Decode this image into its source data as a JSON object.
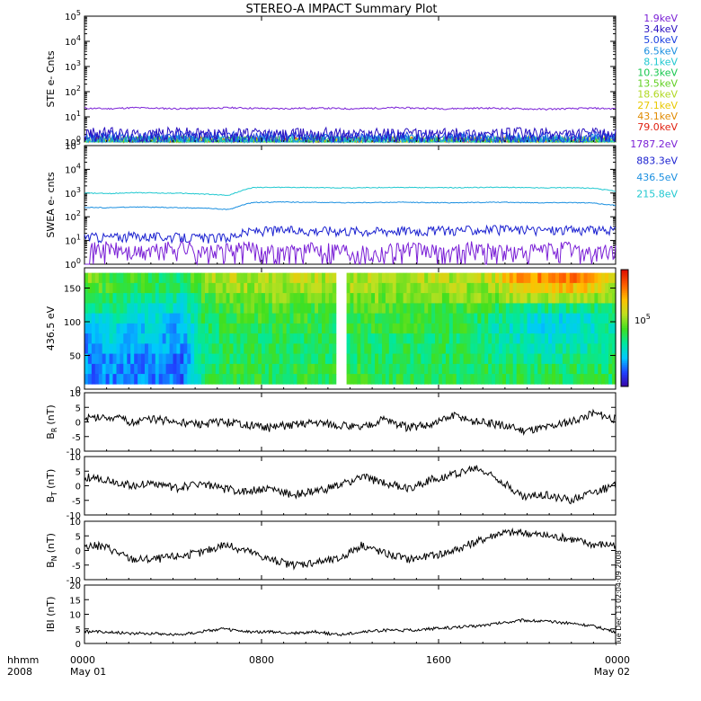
{
  "chart_data": [
    {
      "type": "line",
      "title": "STEREO-A IMPACT Summary Plot",
      "ylabel": "STE e- Cnts",
      "yscale": "log",
      "ylim_exp": [
        0,
        5
      ],
      "tick_mantissa": "10",
      "tick_exponents": [
        "0",
        "1",
        "2",
        "3",
        "4",
        "5"
      ],
      "series": [
        {
          "name": "1.9keV",
          "color": "#7a1fd6",
          "values": [
            22,
            21,
            23,
            22,
            21,
            22,
            23,
            22,
            21,
            22,
            22,
            21,
            22,
            23,
            22,
            21,
            22,
            22,
            21,
            20,
            21,
            22,
            21
          ]
        },
        {
          "name": "3.4keV",
          "color": "#2a10c0",
          "values": [
            2.2,
            2.5,
            2.0,
            2.3,
            2.6,
            2.1,
            2.4,
            2.2,
            2.0,
            2.3,
            2.5,
            2.1,
            2.2,
            2.4,
            2.0,
            2.3,
            2.2,
            2.1,
            2.4,
            2.2,
            2.0,
            2.3,
            2.1
          ]
        },
        {
          "name": "5.0keV",
          "color": "#1a3fe0",
          "values": [
            1.6,
            1.8,
            1.5,
            1.7,
            1.9,
            1.6,
            1.7,
            1.5,
            1.8,
            1.6,
            1.7,
            1.5,
            1.6,
            1.8,
            1.5,
            1.7,
            1.6,
            1.5,
            1.7,
            1.6,
            1.5,
            1.7,
            1.6
          ]
        },
        {
          "name": "6.5keV",
          "color": "#1a8fe0",
          "values": [
            1.3,
            1.4,
            1.2,
            1.3,
            1.5,
            1.2,
            1.3,
            1.2,
            1.4,
            1.3,
            1.3,
            1.2,
            1.3,
            1.4,
            1.2,
            1.3,
            1.3,
            1.2,
            1.3,
            1.3,
            1.2,
            1.3,
            1.3
          ]
        },
        {
          "name": "8.1keV",
          "color": "#20c8d0",
          "values": [
            1.1,
            1.2,
            1.1,
            1.2,
            1.3,
            1.1,
            1.2,
            1.1,
            1.2,
            1.1,
            1.2,
            1.1,
            1.1,
            1.2,
            1.1,
            1.2,
            1.1,
            1.1,
            1.2,
            1.1,
            1.1,
            1.2,
            1.1
          ]
        },
        {
          "name": "10.3keV",
          "color": "#18c850",
          "values": [
            1.0,
            1.1,
            1.0,
            1.1,
            1.2,
            1.0,
            1.1,
            1.0,
            1.1,
            1.0,
            1.1,
            1.0,
            1.0,
            1.1,
            1.0,
            1.1,
            1.0,
            1.0,
            1.1,
            1.0,
            1.0,
            1.1,
            1.0
          ]
        },
        {
          "name": "13.5keV",
          "color": "#60d020",
          "values": [
            1.0,
            1.0,
            1.0,
            1.1,
            1.0,
            1.0,
            1.1,
            1.0,
            1.0,
            1.0,
            1.1,
            1.0,
            1.0,
            1.0,
            1.0,
            1.1,
            1.0,
            1.0,
            1.0,
            1.0,
            1.0,
            1.1,
            1.0
          ]
        },
        {
          "name": "18.6keV",
          "color": "#b0d820",
          "values": [
            1.0,
            1.0,
            1.0,
            1.0,
            1.0,
            1.0,
            1.0,
            1.0,
            1.0,
            1.0,
            1.0,
            1.0,
            1.0,
            1.0,
            1.0,
            1.0,
            1.0,
            1.0,
            1.0,
            1.0,
            1.0,
            1.0,
            1.0
          ]
        },
        {
          "name": "27.1keV",
          "color": "#e8c800",
          "values": [
            1.0,
            1.0,
            1.0,
            1.0,
            1.0,
            1.0,
            1.0,
            1.0,
            1.0,
            1.0,
            1.0,
            1.0,
            1.0,
            1.0,
            1.0,
            1.0,
            1.0,
            1.0,
            1.0,
            1.0,
            1.0,
            1.0,
            1.0
          ]
        },
        {
          "name": "43.1keV",
          "color": "#e08a00",
          "values": [
            1.0,
            1.0,
            1.0,
            1.0,
            1.0,
            1.0,
            1.0,
            1.0,
            1.0,
            1.0,
            1.0,
            1.0,
            1.0,
            1.0,
            1.0,
            1.0,
            1.0,
            1.0,
            1.0,
            1.0,
            1.0,
            1.0,
            1.0
          ]
        },
        {
          "name": "79.0keV",
          "color": "#e02010",
          "values": [
            1.0,
            1.0,
            1.0,
            1.0,
            1.0,
            1.0,
            1.0,
            1.0,
            1.0,
            1.0,
            1.0,
            1.0,
            1.0,
            1.0,
            1.0,
            1.0,
            1.0,
            1.0,
            1.0,
            1.0,
            1.0,
            1.0,
            1.0
          ]
        }
      ]
    },
    {
      "type": "line",
      "ylabel": "SWEA e- cnts",
      "yscale": "log",
      "ylim_exp": [
        0,
        5
      ],
      "tick_mantissa": "10",
      "tick_exponents": [
        "0",
        "1",
        "2",
        "3",
        "4",
        "5"
      ],
      "series": [
        {
          "name": "1787.2eV",
          "color": "#7a1fd6",
          "values": [
            4,
            5,
            3,
            4,
            6,
            3,
            4,
            5,
            3,
            4,
            5,
            4,
            3,
            5,
            4,
            3,
            5,
            4,
            3,
            4,
            5,
            3,
            4
          ]
        },
        {
          "name": "883.3eV",
          "color": "#1a20d0",
          "values": [
            15,
            14,
            16,
            15,
            14,
            13,
            14,
            26,
            28,
            27,
            28,
            27,
            26,
            28,
            27,
            28,
            29,
            30,
            29,
            28,
            29,
            28,
            26
          ]
        },
        {
          "name": "436.5eV",
          "color": "#1a8fe0",
          "values": [
            250,
            240,
            260,
            250,
            240,
            230,
            200,
            400,
            420,
            410,
            400,
            390,
            400,
            410,
            400,
            390,
            400,
            410,
            400,
            390,
            400,
            380,
            300
          ]
        },
        {
          "name": "215.8eV",
          "color": "#20c8d0",
          "values": [
            1000,
            950,
            1050,
            1000,
            980,
            900,
            800,
            1700,
            1750,
            1700,
            1680,
            1650,
            1700,
            1720,
            1700,
            1680,
            1700,
            1750,
            1700,
            1650,
            1700,
            1600,
            1200
          ]
        }
      ]
    },
    {
      "type": "heatmap",
      "ylabel": "436.5 eV",
      "ylim": [
        0,
        180
      ],
      "yticks": [
        0,
        50,
        100,
        150
      ],
      "colorbar_label_mantissa": "10",
      "colorbar_label_exponent": "5",
      "colorscale": [
        "#3a00a0",
        "#2040ff",
        "#00c8ff",
        "#00e8a0",
        "#40e020",
        "#c0e020",
        "#ffc000",
        "#ff6000",
        "#e01000"
      ],
      "rows_pitch_deg": [
        165,
        150,
        135,
        120,
        105,
        90,
        75,
        60,
        45,
        30,
        15
      ],
      "column_levels": [
        [
          0.55,
          0.5,
          0.5,
          0.45,
          0.4,
          0.6,
          0.65,
          0.6,
          0.6,
          0.65,
          0.6,
          0.62,
          0.6,
          0.6,
          0.6,
          0.62,
          0.6,
          0.65,
          0.8,
          0.82,
          0.85,
          0.8,
          0.7
        ],
        [
          0.5,
          0.5,
          0.45,
          0.45,
          0.4,
          0.55,
          0.6,
          0.58,
          0.58,
          0.6,
          0.58,
          0.6,
          0.58,
          0.58,
          0.58,
          0.6,
          0.58,
          0.6,
          0.7,
          0.72,
          0.75,
          0.7,
          0.6
        ],
        [
          0.45,
          0.45,
          0.4,
          0.4,
          0.35,
          0.5,
          0.55,
          0.55,
          0.55,
          0.55,
          0.55,
          0.55,
          0.55,
          0.55,
          0.55,
          0.55,
          0.55,
          0.55,
          0.6,
          0.6,
          0.62,
          0.6,
          0.55
        ],
        [
          0.4,
          0.4,
          0.35,
          0.35,
          0.3,
          0.45,
          0.5,
          0.5,
          0.5,
          0.5,
          0.5,
          0.5,
          0.5,
          0.5,
          0.5,
          0.5,
          0.5,
          0.45,
          0.4,
          0.4,
          0.4,
          0.4,
          0.45
        ],
        [
          0.3,
          0.35,
          0.3,
          0.3,
          0.25,
          0.45,
          0.48,
          0.48,
          0.48,
          0.48,
          0.48,
          0.48,
          0.48,
          0.48,
          0.48,
          0.48,
          0.45,
          0.4,
          0.35,
          0.3,
          0.3,
          0.32,
          0.4
        ],
        [
          0.25,
          0.3,
          0.28,
          0.28,
          0.22,
          0.42,
          0.46,
          0.46,
          0.46,
          0.46,
          0.46,
          0.46,
          0.46,
          0.46,
          0.46,
          0.46,
          0.44,
          0.38,
          0.32,
          0.3,
          0.3,
          0.32,
          0.38
        ],
        [
          0.22,
          0.28,
          0.25,
          0.25,
          0.2,
          0.4,
          0.44,
          0.44,
          0.44,
          0.44,
          0.44,
          0.44,
          0.44,
          0.44,
          0.44,
          0.44,
          0.42,
          0.38,
          0.34,
          0.32,
          0.32,
          0.34,
          0.38
        ],
        [
          0.2,
          0.25,
          0.22,
          0.22,
          0.18,
          0.4,
          0.44,
          0.44,
          0.44,
          0.44,
          0.44,
          0.44,
          0.44,
          0.44,
          0.44,
          0.44,
          0.42,
          0.4,
          0.36,
          0.35,
          0.35,
          0.36,
          0.4
        ],
        [
          0.2,
          0.22,
          0.2,
          0.2,
          0.16,
          0.4,
          0.44,
          0.44,
          0.44,
          0.44,
          0.44,
          0.44,
          0.44,
          0.44,
          0.44,
          0.44,
          0.42,
          0.42,
          0.4,
          0.4,
          0.4,
          0.4,
          0.42
        ],
        [
          0.18,
          0.2,
          0.2,
          0.18,
          0.15,
          0.42,
          0.46,
          0.46,
          0.46,
          0.46,
          0.46,
          0.46,
          0.46,
          0.46,
          0.46,
          0.46,
          0.44,
          0.44,
          0.44,
          0.44,
          0.44,
          0.44,
          0.44
        ],
        [
          0.18,
          0.2,
          0.18,
          0.18,
          0.15,
          0.42,
          0.46,
          0.46,
          0.46,
          0.46,
          0.46,
          0.46,
          0.46,
          0.46,
          0.46,
          0.46,
          0.44,
          0.44,
          0.44,
          0.44,
          0.44,
          0.44,
          0.44
        ]
      ]
    },
    {
      "type": "line",
      "ylabel_main": "B",
      "ylabel_sub": "R",
      "ylabel_unit": "(nT)",
      "ylim": [
        -10,
        10
      ],
      "yticks": [
        "10",
        "5",
        "0",
        "-5",
        "-10"
      ],
      "series": [
        {
          "color": "#000000",
          "values": [
            1,
            2,
            0,
            1,
            0,
            -1,
            0,
            -1,
            -2,
            -1,
            0,
            -1,
            -2,
            1,
            -2,
            -1,
            2,
            0,
            -1,
            -3,
            -2,
            0,
            3,
            1
          ]
        }
      ]
    },
    {
      "type": "line",
      "ylabel_main": "B",
      "ylabel_sub": "T",
      "ylabel_unit": "(nT)",
      "ylim": [
        -10,
        10
      ],
      "yticks": [
        "10",
        "5",
        "0",
        "-5",
        "-10"
      ],
      "series": [
        {
          "color": "#000000",
          "values": [
            3,
            2,
            0,
            1,
            -1,
            1,
            -1,
            -2,
            -1,
            -3,
            -2,
            0,
            3,
            1,
            -1,
            2,
            4,
            6,
            2,
            -4,
            -3,
            -5,
            -2,
            0
          ]
        }
      ]
    },
    {
      "type": "line",
      "ylabel_main": "B",
      "ylabel_sub": "N",
      "ylabel_unit": "(nT)",
      "ylim": [
        -10,
        10
      ],
      "yticks": [
        "10",
        "5",
        "0",
        "-5",
        "-10"
      ],
      "series": [
        {
          "color": "#000000",
          "values": [
            2,
            1,
            -3,
            -3,
            -2,
            -1,
            2,
            0,
            -3,
            -5,
            -4,
            -3,
            2,
            -1,
            -3,
            -2,
            0,
            3,
            6,
            6,
            5,
            4,
            2,
            2
          ]
        }
      ]
    },
    {
      "type": "line",
      "ylabel": "IBI (nT)",
      "ylim": [
        0,
        20
      ],
      "yticks": [
        "20",
        "15",
        "10",
        "5",
        "0"
      ],
      "series": [
        {
          "color": "#000000",
          "values": [
            4,
            4,
            3.5,
            3.5,
            3,
            4,
            5,
            4,
            4,
            3.5,
            4,
            3,
            4,
            4.5,
            4.5,
            5,
            5.5,
            6,
            7,
            8,
            7.5,
            7,
            6,
            4
          ]
        }
      ]
    }
  ],
  "x_axis": {
    "label_line1": "hhmm",
    "label_line2": "2008",
    "ticks": [
      {
        "line1": "0000",
        "line2": "May 01"
      },
      {
        "line1": "0800",
        "line2": ""
      },
      {
        "line1": "1600",
        "line2": ""
      },
      {
        "line1": "0000",
        "line2": "May 02"
      }
    ]
  },
  "side_note": "Tue Dec 13 02:04:09 2008"
}
